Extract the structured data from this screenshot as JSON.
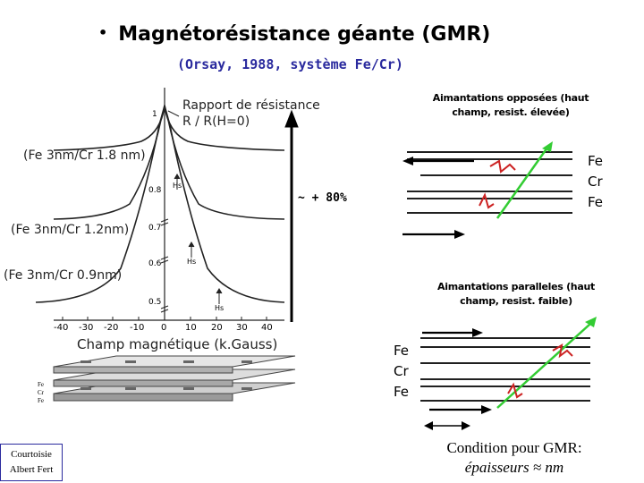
{
  "header": {
    "bullet": "•",
    "title": "Magnétorésistance géante (GMR)",
    "subtitle": "(Orsay, 1988, système Fe/Cr)"
  },
  "graph": {
    "ylabel_line1": "Rapport de résistance",
    "ylabel_line2": "R / R(H=0)",
    "xlabel": "Champ magnétique (k.Gauss)",
    "curves": [
      "(Fe 3nm/Cr 1.8 nm)",
      "(Fe 3nm/Cr 1.2nm)",
      "(Fe 3nm/Cr 0.9nm)"
    ],
    "y_ticks": [
      "1",
      "0.8",
      "0.7",
      "0.6",
      "0.5"
    ],
    "x_ticks": [
      "-40",
      "-30",
      "-20",
      "-10",
      "0",
      "10",
      "20",
      "30",
      "40"
    ],
    "hs_label": "Hs",
    "stack_labels": [
      "Fe",
      "Cr",
      "Fe"
    ]
  },
  "annotation": {
    "gmr_value": "~ + 80%"
  },
  "antiparallel": {
    "caption_line1": "Aimantations opposées (haut",
    "caption_line2": "champ, resist. élevée)",
    "layers": [
      "Fe",
      "Cr",
      "Fe"
    ]
  },
  "parallel": {
    "caption_line1": "Aimantations paralleles (haut",
    "caption_line2": "champ, resist. faible)",
    "layers": [
      "Fe",
      "Cr",
      "Fe"
    ]
  },
  "credit": {
    "line1": "Courtoisie",
    "line2": "Albert Fert"
  },
  "condition": {
    "line1": "Condition pour GMR:",
    "line2": "épaisseurs ≈ nm"
  },
  "colors": {
    "title_blue": "#2a2a9e",
    "electron_path": "#33cc33",
    "scatter": "#cc2222"
  }
}
